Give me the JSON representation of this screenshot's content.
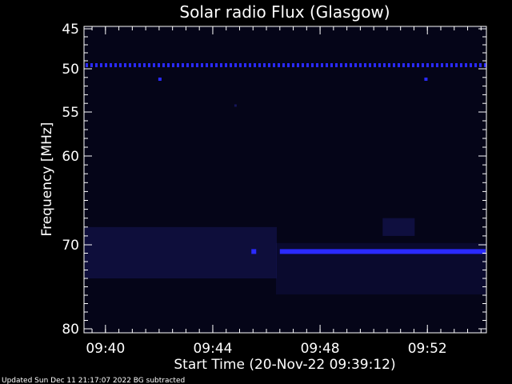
{
  "chart_data": {
    "type": "heatmap",
    "title": "Solar radio Flux (Glasgow)",
    "ylabel": "Frequency [MHz]",
    "xlabel": "Start Time (20-Nov-22 09:39:12)",
    "y_ticks": [
      "45",
      "50",
      "55",
      "60",
      "70",
      "80"
    ],
    "x_ticks": [
      "09:40",
      "09:44",
      "09:48",
      "09:52"
    ],
    "footer": "Updated Sun Dec 11 21:17:07 2022   BG subtracted",
    "colors": {
      "background": "#000000",
      "plot_background": "#050518",
      "band_faint": "#15155a",
      "band_bright": "#2a2aff",
      "text": "#ffffff"
    },
    "features": {
      "interference_line_mhz": 49.5,
      "burst_band_mhz": 70.8,
      "burst_band_start": "09:45:30",
      "faint_band_mhz_range": [
        68.0,
        74.0
      ]
    }
  }
}
